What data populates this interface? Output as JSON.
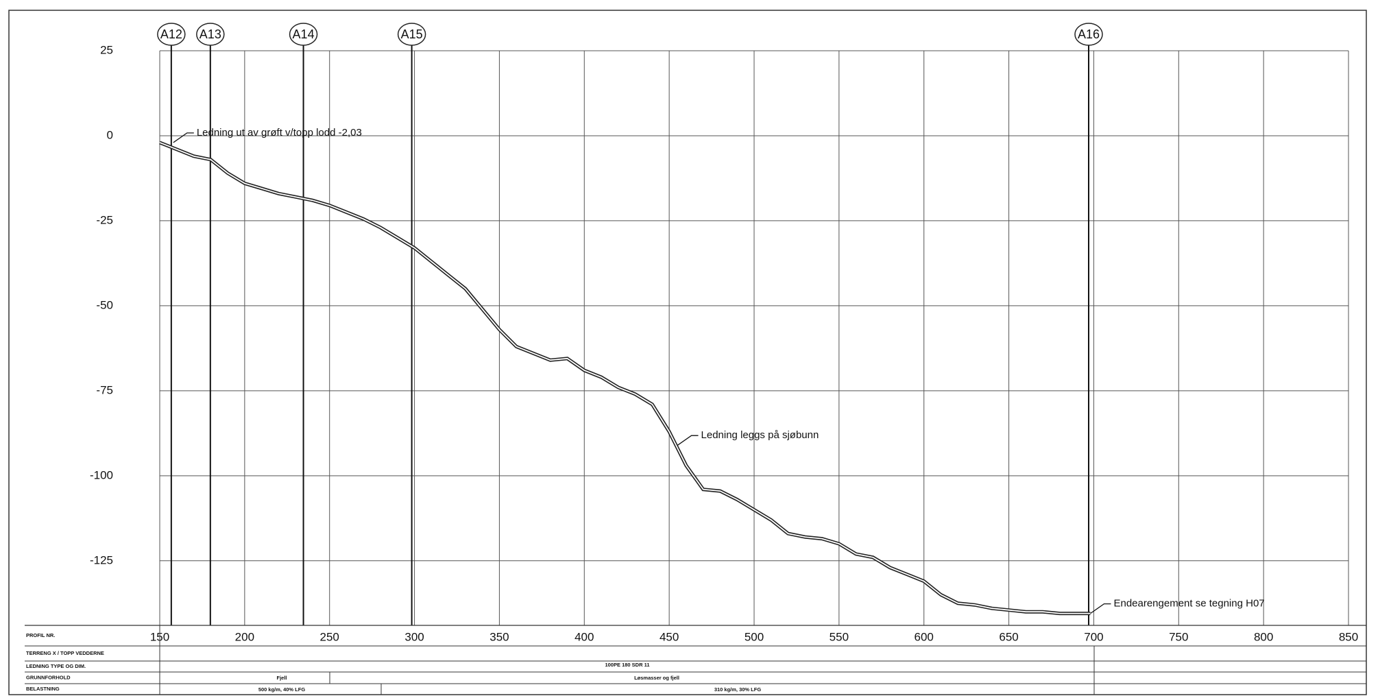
{
  "chart_data": {
    "type": "line",
    "xlim": [
      150,
      850
    ],
    "xticks": [
      150,
      200,
      250,
      300,
      350,
      400,
      450,
      500,
      550,
      600,
      650,
      700,
      750,
      800,
      850
    ],
    "ylim": [
      -144,
      25
    ],
    "yticks": [
      25,
      0,
      -25,
      -50,
      -75,
      -100,
      -125
    ],
    "grid": true,
    "color": "#222222",
    "x": [
      150,
      155,
      160,
      170,
      180,
      190,
      200,
      210,
      220,
      230,
      240,
      250,
      260,
      270,
      280,
      290,
      300,
      310,
      320,
      330,
      340,
      350,
      360,
      370,
      380,
      390,
      400,
      410,
      420,
      430,
      440,
      450,
      460,
      470,
      480,
      490,
      500,
      510,
      520,
      530,
      540,
      550,
      560,
      570,
      580,
      590,
      600,
      610,
      620,
      630,
      640,
      650,
      660,
      670,
      680,
      690,
      698
    ],
    "values": [
      -2,
      -3,
      -4,
      -6,
      -7,
      -11,
      -14,
      -15.5,
      -17,
      -18,
      -19,
      -20.5,
      -22.5,
      -24.5,
      -27,
      -30,
      -33,
      -37,
      -41,
      -45,
      -51,
      -57,
      -62,
      -64,
      -66,
      -65.5,
      -69,
      -71,
      -74,
      -76,
      -79,
      -87,
      -97,
      -104,
      -104.5,
      -107,
      -110,
      -113,
      -117,
      -118,
      -118.5,
      -120,
      -123,
      -124,
      -127,
      -129,
      -131,
      -135,
      -137.5,
      -138,
      -139,
      -139.5,
      -140,
      -140,
      -140.5,
      -140.5,
      -140.5
    ],
    "markers": [
      {
        "x": 156.8,
        "label": "A12"
      },
      {
        "x": 179.8,
        "label": "A13"
      },
      {
        "x": 234.6,
        "label": "A14"
      },
      {
        "x": 298.4,
        "label": "A15"
      },
      {
        "x": 697,
        "label": "A16"
      }
    ],
    "annotations": [
      {
        "x": 158,
        "y": -2,
        "text": "Ledning ut av grøft v/topp lodd -2,03"
      },
      {
        "x": 455,
        "y": -91,
        "text": "Ledning leggs på sjøbunn"
      },
      {
        "x": 698,
        "y": -140.5,
        "text": "Endearengement  se tegning H07"
      }
    ],
    "table": {
      "row_labels": [
        "PROFIL NR.",
        "TERRENG X / TOPP VEDDERNE",
        "LEDNING TYPE OG DIM.",
        "GRUNNFORHOLD",
        "BELASTNING"
      ],
      "pipe": "100PE 180 SDR 11",
      "ground": [
        "Fjell",
        "Løsmasser og fjell"
      ],
      "load": [
        "500 kg/m, 40% LFG",
        "310 kg/m, 30% LFG"
      ]
    }
  }
}
